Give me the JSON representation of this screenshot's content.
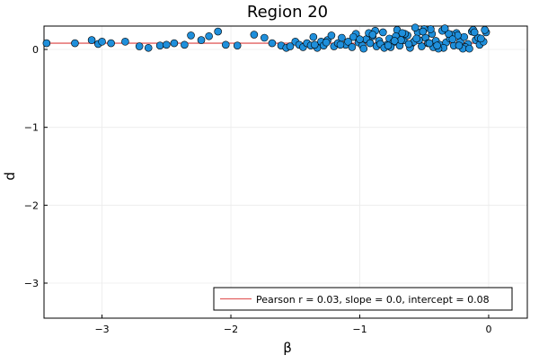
{
  "chart_data": {
    "type": "scatter",
    "title": "Region 20",
    "xlabel": "β",
    "ylabel": "d",
    "xlim": [
      -3.45,
      0.3
    ],
    "ylim": [
      -3.45,
      0.3
    ],
    "xticks": [
      -3,
      -2,
      -1,
      0
    ],
    "xtick_labels": [
      "−3",
      "−2",
      "−1",
      "0"
    ],
    "yticks": [
      -3,
      -2,
      -1,
      0
    ],
    "ytick_labels": [
      "−3",
      "−2",
      "−1",
      "0"
    ],
    "grid": true,
    "legend": {
      "placement": "bottom-right",
      "entries": [
        "Pearson r = 0.03, slope = 0.0, intercept = 0.08"
      ]
    },
    "fit_line": {
      "slope": 0.0,
      "intercept": 0.08,
      "color": "#e26060"
    },
    "point_color": "#1f8fdb",
    "series": [
      {
        "x": [
          -3.43,
          -3.21,
          -3.08,
          -3.03,
          -3.0,
          -2.93,
          -2.82,
          -2.71,
          -2.64,
          -2.55,
          -2.5,
          -2.44,
          -2.36,
          -2.31,
          -2.23,
          -2.17,
          -2.1,
          -2.04,
          -1.95,
          -1.82,
          -1.74,
          -1.68,
          -1.61,
          -1.57,
          -1.54,
          -1.5,
          -1.47,
          -1.44,
          -1.41,
          -1.38,
          -1.36,
          -1.33,
          -1.3,
          -1.28,
          -1.25,
          -1.22,
          -1.2,
          -1.17,
          -1.14,
          -1.11,
          -1.09,
          -1.06,
          -1.03,
          -1.01,
          -0.98,
          -0.95,
          -0.92,
          -0.9,
          -0.87,
          -0.85,
          -0.82,
          -0.79,
          -0.77,
          -0.74,
          -0.71,
          -0.69,
          -0.66,
          -0.63,
          -0.6,
          -0.58,
          -0.55,
          -0.52,
          -0.49,
          -0.47,
          -0.44,
          -0.41,
          -0.38,
          -0.36,
          -0.33,
          -0.3,
          -0.27,
          -0.25,
          -0.22,
          -0.19,
          -0.16,
          -0.13,
          -0.1,
          -0.07,
          -0.04,
          -0.02,
          -0.88,
          -0.76,
          -0.65,
          -0.54,
          -0.45,
          -0.35,
          -0.24,
          -0.12,
          -1.15,
          -1.05,
          -0.97,
          -0.84,
          -0.72,
          -0.61,
          -0.5,
          -0.39,
          -0.29,
          -0.18,
          -0.08,
          -1.26,
          -0.93,
          -0.81,
          -0.68,
          -0.57,
          -0.43,
          -0.31,
          -0.2,
          -0.06,
          -1.35,
          -1.0,
          -0.9,
          -0.78,
          -0.67,
          -0.56,
          -0.46,
          -0.34,
          -0.23,
          -0.11,
          -0.03,
          -0.73,
          -0.62,
          -0.51,
          -0.4,
          -0.28,
          -0.15
        ],
        "y": [
          0.08,
          0.08,
          0.12,
          0.07,
          0.1,
          0.08,
          0.1,
          0.04,
          0.02,
          0.05,
          0.06,
          0.08,
          0.06,
          0.18,
          0.12,
          0.17,
          0.23,
          0.06,
          0.05,
          0.19,
          0.15,
          0.08,
          0.05,
          0.02,
          0.04,
          0.1,
          0.06,
          0.03,
          0.08,
          0.05,
          0.16,
          0.02,
          0.1,
          0.05,
          0.12,
          0.18,
          0.04,
          0.08,
          0.15,
          0.06,
          0.1,
          0.03,
          0.2,
          0.09,
          0.05,
          0.13,
          0.08,
          0.17,
          0.04,
          0.11,
          0.22,
          0.06,
          0.14,
          0.09,
          0.25,
          0.05,
          0.12,
          0.18,
          0.07,
          0.1,
          0.22,
          0.04,
          0.15,
          0.08,
          0.2,
          0.11,
          0.06,
          0.24,
          0.09,
          0.14,
          0.05,
          0.21,
          0.1,
          0.16,
          0.07,
          0.23,
          0.12,
          0.06,
          0.1,
          0.22,
          0.24,
          0.03,
          0.2,
          0.12,
          0.26,
          0.02,
          0.18,
          0.25,
          0.06,
          0.16,
          0.01,
          0.07,
          0.17,
          0.02,
          0.26,
          0.01,
          0.19,
          0.03,
          0.15,
          0.09,
          0.21,
          0.02,
          0.12,
          0.28,
          0.03,
          0.2,
          0.01,
          0.14,
          0.06,
          0.13,
          0.19,
          0.05,
          0.21,
          0.14,
          0.08,
          0.27,
          0.05,
          0.22,
          0.25,
          0.11,
          0.07,
          0.23,
          0.05,
          0.13,
          0.01
        ]
      }
    ]
  }
}
